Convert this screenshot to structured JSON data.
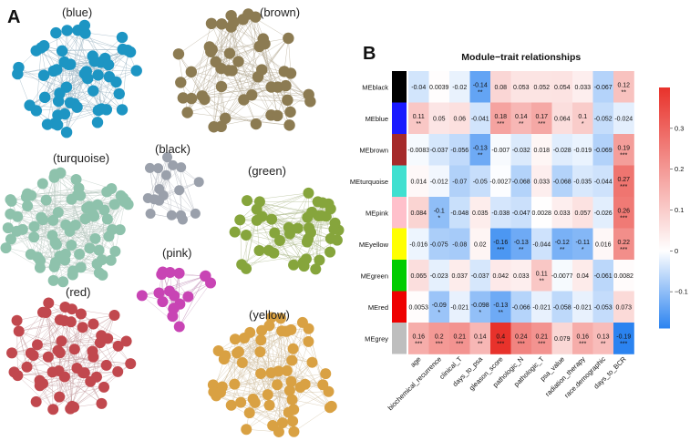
{
  "panel_a": {
    "letter": "A",
    "modules": [
      {
        "key": "blue",
        "title": "(blue)",
        "color": "#1d95c3",
        "edge": "#9ab3c2"
      },
      {
        "key": "brown",
        "title": "(brown)",
        "color": "#8c7b52",
        "edge": "#b5ab96"
      },
      {
        "key": "turquoise",
        "title": "(turquoise)",
        "color": "#8ec2ac",
        "edge": "#b9cac2"
      },
      {
        "key": "black",
        "title": "(black)",
        "color": "#9aa0ab",
        "edge": "#b8bcc4"
      },
      {
        "key": "green",
        "title": "(green)",
        "color": "#86a53c",
        "edge": "#b2be92"
      },
      {
        "key": "pink",
        "title": "(pink)",
        "color": "#c844b4",
        "edge": "#c9a0c2"
      },
      {
        "key": "red",
        "title": "(red)",
        "color": "#c1484e",
        "edge": "#c7a2a4"
      },
      {
        "key": "yellow",
        "title": "(yellow)",
        "color": "#d9a143",
        "edge": "#d1c0a2"
      }
    ]
  },
  "panel_b": {
    "letter": "B",
    "chart_data": {
      "type": "heatmap",
      "title": "Module−trait relationships",
      "rows": [
        "MEblack",
        "MEblue",
        "MEbrown",
        "MEturquoise",
        "MEpink",
        "MEyellow",
        "MEgreen",
        "MEred",
        "MEgrey"
      ],
      "row_colors": [
        "#000000",
        "#1a1aff",
        "#a52a2a",
        "#40e0d0",
        "#ffc0cb",
        "#ffff00",
        "#00cc00",
        "#ee0000",
        "#bebebe"
      ],
      "columns": [
        "age",
        "biochemical_recurrence",
        "clinical_T",
        "days_to_psa",
        "gleason_score",
        "pathologic_N",
        "pathologic_T",
        "psa_value",
        "radiation_therapy",
        "race.demographic",
        "days_to_BCR"
      ],
      "values": [
        [
          -0.04,
          0.0039,
          -0.02,
          -0.14,
          0.08,
          0.053,
          0.052,
          0.054,
          0.033,
          -0.067,
          0.12
        ],
        [
          0.11,
          0.05,
          0.06,
          -0.041,
          0.18,
          0.14,
          0.17,
          0.064,
          0.1,
          -0.052,
          -0.024
        ],
        [
          -0.0083,
          -0.037,
          -0.056,
          -0.13,
          -0.007,
          -0.032,
          0.018,
          -0.028,
          -0.019,
          -0.069,
          0.19
        ],
        [
          0.014,
          -0.012,
          -0.07,
          -0.05,
          -0.0027,
          -0.068,
          0.033,
          -0.068,
          -0.035,
          -0.044,
          0.27
        ],
        [
          0.084,
          -0.1,
          -0.048,
          0.035,
          -0.038,
          -0.047,
          0.0028,
          0.033,
          0.057,
          -0.026,
          0.26
        ],
        [
          -0.016,
          -0.075,
          -0.08,
          0.02,
          -0.16,
          -0.13,
          -0.044,
          -0.12,
          -0.11,
          0.016,
          0.22
        ],
        [
          0.065,
          -0.023,
          0.037,
          -0.037,
          0.042,
          0.033,
          0.11,
          -0.0077,
          0.04,
          -0.061,
          0.0082
        ],
        [
          0.0053,
          -0.09,
          -0.021,
          -0.098,
          -0.13,
          -0.066,
          -0.021,
          -0.058,
          -0.021,
          -0.053,
          0.073
        ],
        [
          0.16,
          0.2,
          0.21,
          0.14,
          0.4,
          0.24,
          0.21,
          0.079,
          0.16,
          0.13,
          -0.19
        ]
      ],
      "labels": [
        [
          "-0.04",
          "0.0039",
          "-0.02",
          "-0.14",
          "0.08",
          "0.053",
          "0.052",
          "0.054",
          "0.033",
          "-0.067",
          "0.12"
        ],
        [
          "0.11",
          "0.05",
          "0.06",
          "-0.041",
          "0.18",
          "0.14",
          "0.17",
          "0.064",
          "0.1",
          "-0.052",
          "-0.024"
        ],
        [
          "-0.0083",
          "-0.037",
          "-0.056",
          "-0.13",
          "-0.007",
          "-0.032",
          "0.018",
          "-0.028",
          "-0.019",
          "-0.069",
          "0.19"
        ],
        [
          "0.014",
          "-0.012",
          "-0.07",
          "-0.05",
          "-0.0027",
          "-0.068",
          "0.033",
          "-0.068",
          "-0.035",
          "-0.044",
          "0.27"
        ],
        [
          "0.084",
          "-0.1",
          "-0.048",
          "0.035",
          "-0.038",
          "-0.047",
          "0.0028",
          "0.033",
          "0.057",
          "-0.026",
          "0.26"
        ],
        [
          "-0.016",
          "-0.075",
          "-0.08",
          "0.02",
          "-0.16",
          "-0.13",
          "-0.044",
          "-0.12",
          "-0.11",
          "0.016",
          "0.22"
        ],
        [
          "0.065",
          "-0.023",
          "0.037",
          "-0.037",
          "0.042",
          "0.033",
          "0.11",
          "-0.0077",
          "0.04",
          "-0.061",
          "0.0082"
        ],
        [
          "0.0053",
          "-0.09",
          "-0.021",
          "-0.098",
          "-0.13",
          "-0.066",
          "-0.021",
          "-0.058",
          "-0.021",
          "-0.053",
          "0.073"
        ],
        [
          "0.16",
          "0.2",
          "0.21",
          "0.14",
          "0.4",
          "0.24",
          "0.21",
          "0.079",
          "0.16",
          "0.13",
          "-0.19"
        ]
      ],
      "significance": [
        [
          "",
          "",
          "",
          "**",
          "",
          "",
          "",
          "",
          "",
          "",
          "**"
        ],
        [
          "**",
          "",
          "",
          "",
          "***",
          "**",
          "***",
          "",
          "*",
          "",
          ""
        ],
        [
          "",
          "",
          "",
          "**",
          "",
          "",
          "",
          "",
          "",
          "",
          "***"
        ],
        [
          "",
          "",
          "",
          "",
          "",
          "",
          "",
          "",
          "",
          "",
          "***"
        ],
        [
          "",
          "*",
          "",
          "",
          "",
          "",
          "",
          "",
          "",
          "",
          "***"
        ],
        [
          "",
          "",
          "",
          "",
          "***",
          "**",
          "",
          "**",
          "*",
          "",
          "***"
        ],
        [
          "",
          "",
          "",
          "",
          "",
          "",
          "**",
          "",
          "",
          "",
          ""
        ],
        [
          "",
          "*",
          "",
          "*",
          "**",
          "",
          "",
          "",
          "",
          "",
          ""
        ],
        [
          "***",
          "***",
          "***",
          "**",
          "***",
          "***",
          "***",
          "",
          "***",
          "**",
          "***"
        ]
      ],
      "colorbar": {
        "ticks": [
          0.3,
          0.2,
          0.1,
          0,
          -0.1
        ],
        "tick_labels": [
          "0.3",
          "0.2",
          "0.1",
          "0",
          "−0.1"
        ],
        "range": [
          -0.19,
          0.4
        ]
      },
      "colors": {
        "negative": "#2b83f0",
        "neutral": "#ffffff",
        "positive": "#e8322b"
      }
    }
  }
}
